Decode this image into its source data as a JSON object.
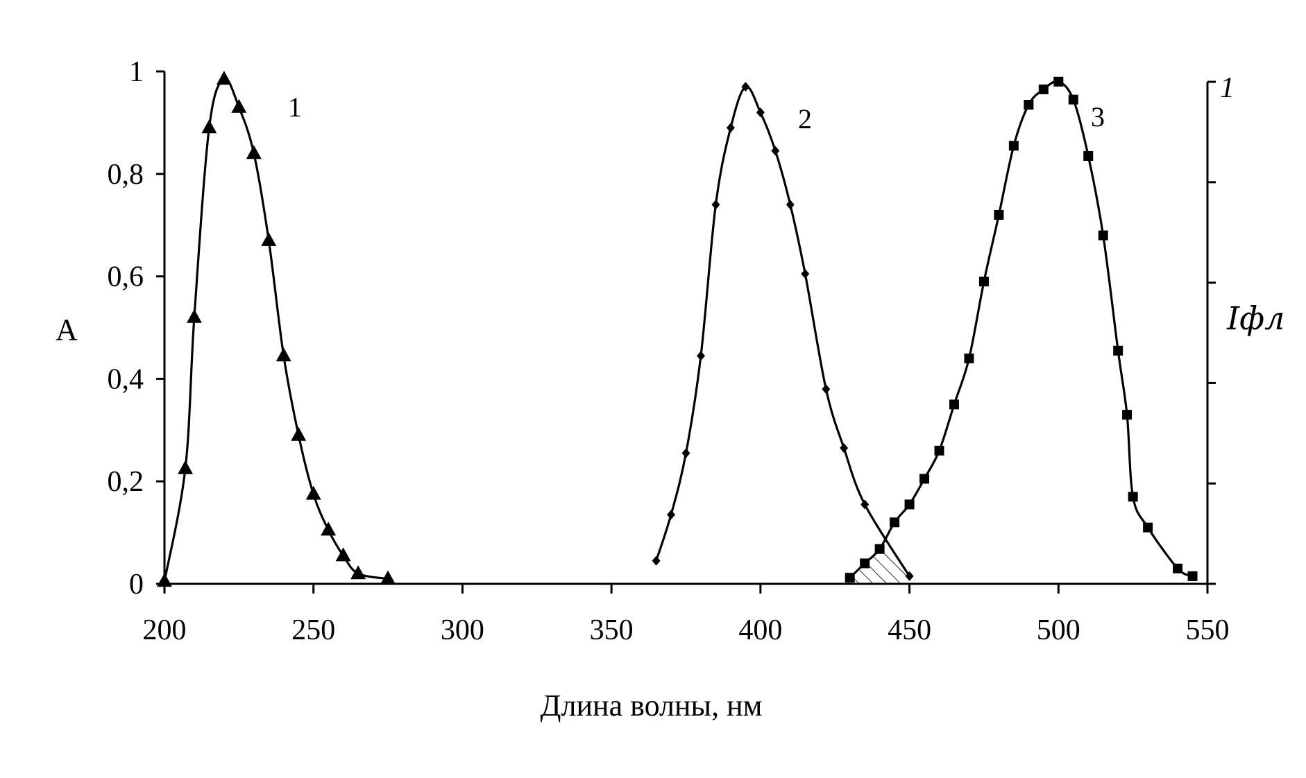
{
  "chart_data": {
    "type": "line",
    "title": "",
    "xlabel": "Длина волны, нм",
    "ylabel": "А",
    "y2label": "Iфл",
    "xlim": [
      200,
      550
    ],
    "ylim": [
      0,
      1
    ],
    "y2lim": [
      0,
      1
    ],
    "xticks": [
      "200",
      "250",
      "300",
      "350",
      "400",
      "450",
      "500",
      "550"
    ],
    "yticks": [
      "0",
      "0,2",
      "0,4",
      "0,6",
      "0,8",
      "1"
    ],
    "y2ticks": [
      "1"
    ],
    "grid": false,
    "legend": "none",
    "series": [
      {
        "name": "1",
        "axis": "left",
        "marker": "triangle",
        "x": [
          200,
          207,
          210,
          215,
          220,
          225,
          230,
          235,
          240,
          245,
          250,
          255,
          260,
          265,
          275
        ],
        "y": [
          0.005,
          0.225,
          0.52,
          0.89,
          0.985,
          0.93,
          0.84,
          0.67,
          0.445,
          0.29,
          0.175,
          0.105,
          0.055,
          0.02,
          0.01
        ]
      },
      {
        "name": "2",
        "axis": "left",
        "marker": "diamond",
        "x": [
          365,
          370,
          375,
          380,
          385,
          390,
          395,
          400,
          405,
          410,
          415,
          422,
          428,
          435,
          450
        ],
        "y": [
          0.045,
          0.135,
          0.255,
          0.445,
          0.74,
          0.89,
          0.97,
          0.92,
          0.845,
          0.74,
          0.605,
          0.38,
          0.265,
          0.155,
          0.015
        ]
      },
      {
        "name": "3",
        "axis": "right",
        "marker": "square",
        "x": [
          430,
          435,
          440,
          445,
          450,
          455,
          460,
          465,
          470,
          475,
          480,
          485,
          490,
          495,
          500,
          505,
          510,
          515,
          520,
          523,
          525,
          530,
          540,
          545
        ],
        "y": [
          0.012,
          0.04,
          0.068,
          0.12,
          0.155,
          0.205,
          0.26,
          0.35,
          0.44,
          0.59,
          0.72,
          0.855,
          0.935,
          0.965,
          0.98,
          0.945,
          0.835,
          0.68,
          0.455,
          0.33,
          0.17,
          0.11,
          0.03,
          0.015
        ]
      }
    ],
    "hatched_overlap": {
      "between_series": [
        "2",
        "3"
      ],
      "x_range": [
        430,
        450
      ]
    }
  }
}
